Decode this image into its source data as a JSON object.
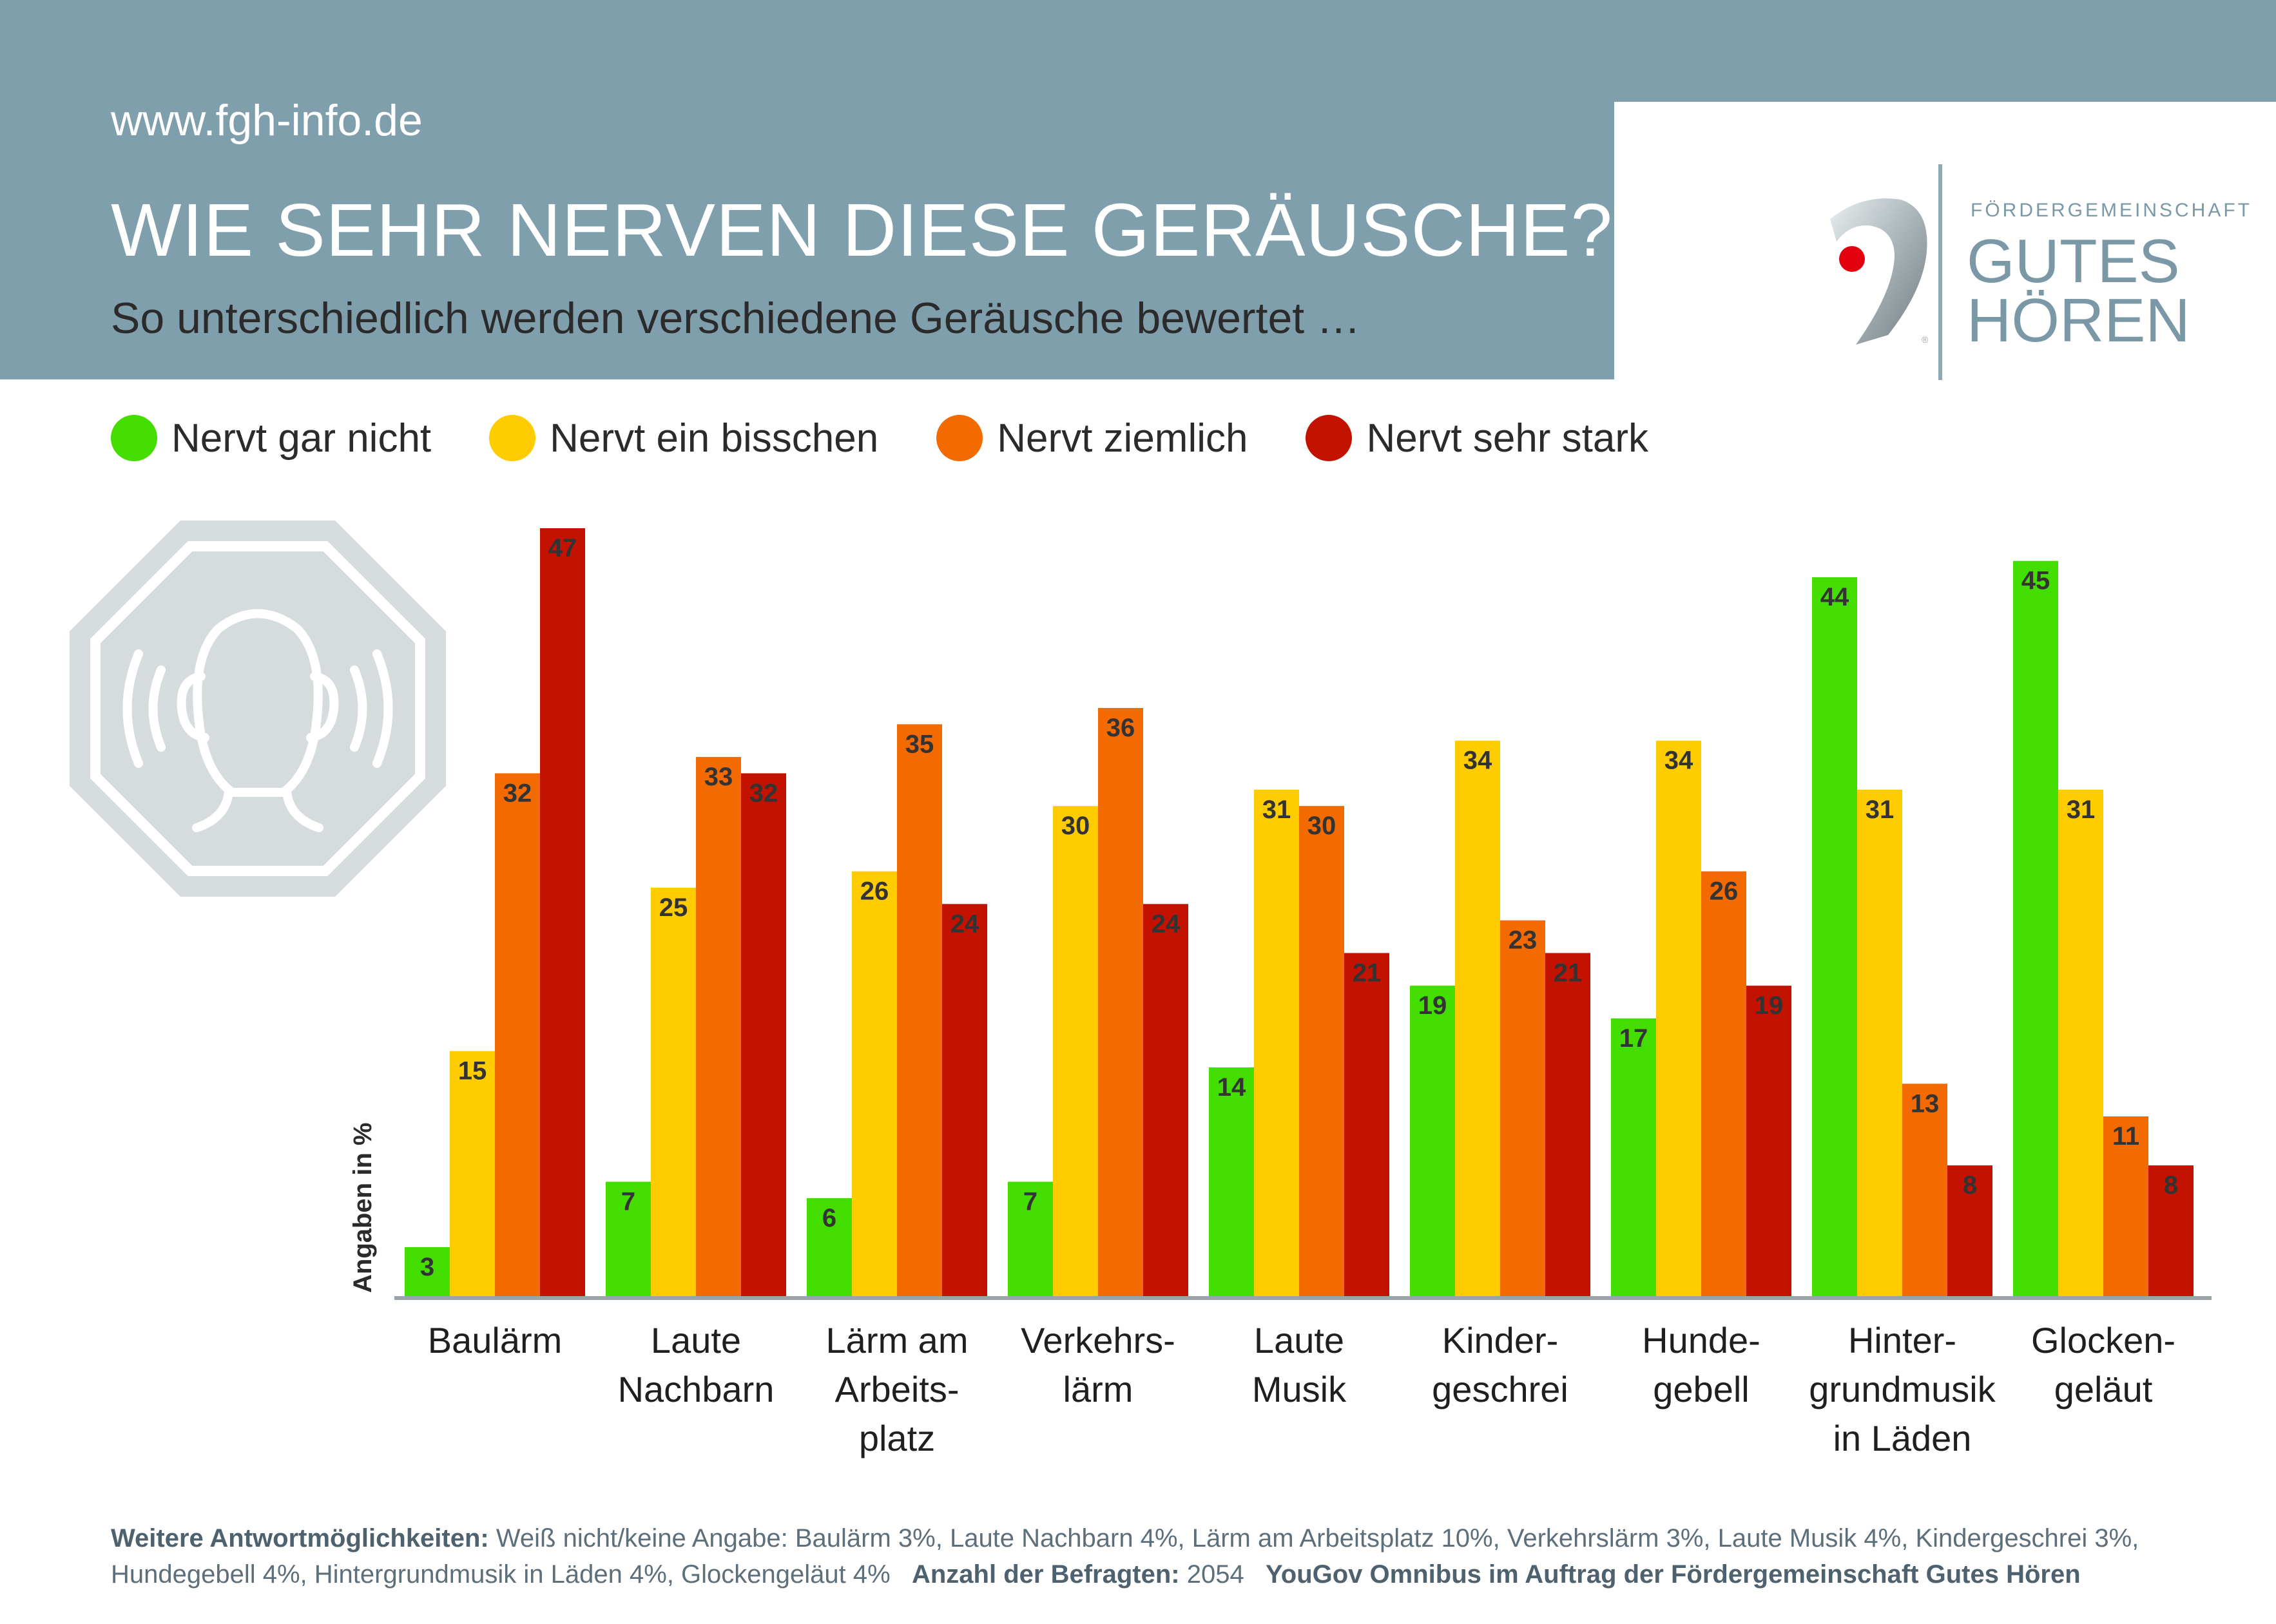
{
  "header": {
    "url": "www.fgh-info.de",
    "title": "WIE SEHR NERVEN DIESE GERÄUSCHE?",
    "subtitle": "So unterschiedlich werden verschiedene Geräusche bewertet …"
  },
  "logo": {
    "line1": "FÖRDERGEMEINSCHAFT",
    "line2": "GUTES",
    "line3": "HÖREN",
    "icon": "ear-logo-icon",
    "color": "#7a98a6"
  },
  "decoration": {
    "icon": "ear-noise-octagon-icon",
    "color": "#d6dcdd"
  },
  "chart_data": {
    "type": "bar",
    "ylabel": "Angaben in %",
    "ylim": [
      0,
      47
    ],
    "grid": false,
    "legend_position": "top-left",
    "categories": [
      [
        "Baulärm"
      ],
      [
        "Laute",
        "Nachbarn"
      ],
      [
        "Lärm am",
        "Arbeits-",
        "platz"
      ],
      [
        "Verkehrs-",
        "lärm"
      ],
      [
        "Laute",
        "Musik"
      ],
      [
        "Kinder-",
        "geschrei"
      ],
      [
        "Hunde-",
        "gebell"
      ],
      [
        "Hinter-",
        "grundmusik",
        "in Läden"
      ],
      [
        "Glocken-",
        "geläut"
      ]
    ],
    "series": [
      {
        "name": "Nervt gar nicht",
        "color": "#44dd00",
        "values": [
          3,
          7,
          6,
          7,
          14,
          19,
          17,
          44,
          45
        ]
      },
      {
        "name": "Nervt ein bisschen",
        "color": "#ffcc00",
        "values": [
          15,
          25,
          26,
          30,
          31,
          34,
          34,
          31,
          31
        ]
      },
      {
        "name": "Nervt ziemlich",
        "color": "#f36a00",
        "values": [
          32,
          33,
          35,
          36,
          30,
          23,
          26,
          13,
          11
        ]
      },
      {
        "name": "Nervt sehr stark",
        "color": "#c41200",
        "values": [
          47,
          32,
          24,
          24,
          21,
          21,
          19,
          8,
          8
        ]
      }
    ]
  },
  "footnote": {
    "label1": "Weitere Antwortmöglichkeiten:",
    "text1a": " Weiß nicht/keine Angabe: Baulärm 3%, Laute Nachbarn 4%, Lärm am Arbeitsplatz 10%, Verkehrslärm  3%, Laute Musik 4%, Kindergeschrei 3%,",
    "text1b": "Hundegebell 4%, Hintergrundmusik in Läden 4%, Glockengeläut 4%",
    "label2": "Anzahl der Befragten:",
    "text2": " 2054",
    "label3": "YouGov Omnibus im Auftrag der Fördergemeinschaft Gutes Hören"
  }
}
